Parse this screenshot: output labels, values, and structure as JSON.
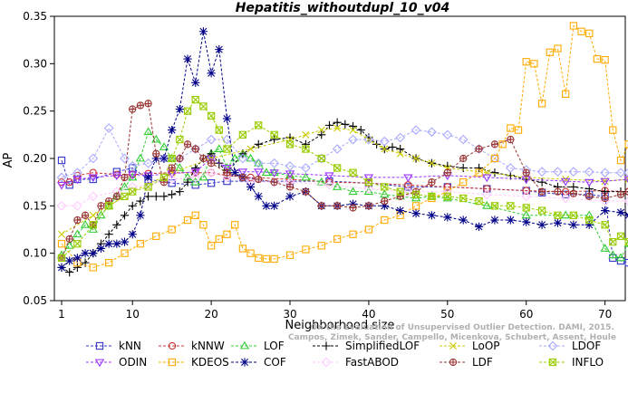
{
  "chart_data": {
    "type": "line",
    "title": "Hepatitis_withoutdupl_10_v04",
    "xlabel": "Neighborhood size",
    "ylabel": "AP",
    "xlim": [
      0,
      74
    ],
    "ylim": [
      0.05,
      0.35
    ],
    "xticks": [
      1,
      10,
      20,
      30,
      40,
      50,
      60,
      70
    ],
    "yticks": [
      0.05,
      0.1,
      0.15,
      0.2,
      0.25,
      0.3,
      0.35
    ],
    "ytick_labels": [
      "0.05",
      "0.10",
      "0.15",
      "0.20",
      "0.25",
      "0.30",
      "0.35"
    ],
    "grid": false,
    "legend_position": "bottom",
    "watermark": "Campos, Zimek, Sander, Campello, Micenkova, Schubert, Assent, Houle",
    "watermark_ref": "On the Evaluation of Unsupervised Outlier Detection. DAMI, 2015.",
    "series": [
      {
        "name": "kNN",
        "color": "#3333cc",
        "marker": "square",
        "x": [
          1,
          2,
          3,
          5,
          8,
          10,
          12,
          15,
          18,
          20,
          22,
          25,
          30,
          35,
          40,
          45,
          50,
          55,
          60,
          62,
          65,
          68,
          70,
          71,
          72,
          73
        ],
        "y": [
          0.198,
          0.172,
          0.178,
          0.178,
          0.186,
          0.19,
          0.178,
          0.174,
          0.172,
          0.174,
          0.176,
          0.176,
          0.176,
          0.176,
          0.174,
          0.17,
          0.17,
          0.168,
          0.166,
          0.164,
          0.162,
          0.162,
          0.16,
          0.095,
          0.092,
          0.09
        ]
      },
      {
        "name": "kNNW",
        "color": "#cc3333",
        "marker": "circle",
        "x": [
          1,
          2,
          3,
          5,
          8,
          10,
          12,
          15,
          18,
          20,
          22,
          25,
          30,
          35,
          40,
          45,
          50,
          55,
          60,
          65,
          70,
          73
        ],
        "y": [
          0.175,
          0.175,
          0.182,
          0.185,
          0.183,
          0.183,
          0.184,
          0.185,
          0.185,
          0.185,
          0.182,
          0.18,
          0.178,
          0.175,
          0.174,
          0.172,
          0.17,
          0.168,
          0.166,
          0.165,
          0.166,
          0.165
        ]
      },
      {
        "name": "LOF",
        "color": "#33cc33",
        "marker": "triangle",
        "x": [
          1,
          2,
          3,
          4,
          5,
          6,
          7,
          8,
          9,
          10,
          11,
          12,
          13,
          14,
          15,
          16,
          17,
          18,
          19,
          20,
          21,
          22,
          23,
          24,
          25,
          26,
          27,
          28,
          30,
          32,
          34,
          36,
          38,
          40,
          42,
          44,
          46,
          48,
          50,
          55,
          60,
          65,
          68,
          70,
          71,
          72,
          73
        ],
        "y": [
          0.098,
          0.108,
          0.12,
          0.13,
          0.125,
          0.14,
          0.15,
          0.16,
          0.17,
          0.18,
          0.2,
          0.228,
          0.22,
          0.212,
          0.2,
          0.19,
          0.18,
          0.175,
          0.18,
          0.205,
          0.21,
          0.19,
          0.2,
          0.205,
          0.2,
          0.195,
          0.185,
          0.185,
          0.182,
          0.18,
          0.175,
          0.17,
          0.165,
          0.165,
          0.162,
          0.16,
          0.158,
          0.16,
          0.158,
          0.15,
          0.14,
          0.14,
          0.14,
          0.105,
          0.098,
          0.095,
          0.11
        ]
      },
      {
        "name": "SimplifiedLOF",
        "color": "#000000",
        "marker": "plus",
        "x": [
          1,
          2,
          3,
          4,
          5,
          6,
          7,
          8,
          9,
          10,
          11,
          12,
          13,
          14,
          15,
          16,
          17,
          18,
          19,
          20,
          21,
          22,
          24,
          26,
          28,
          30,
          32,
          34,
          35,
          36,
          37,
          38,
          39,
          40,
          41,
          42,
          43,
          44,
          46,
          48,
          50,
          52,
          54,
          56,
          58,
          60,
          62,
          64,
          66,
          68,
          70,
          72,
          73
        ],
        "y": [
          0.085,
          0.08,
          0.085,
          0.09,
          0.1,
          0.11,
          0.12,
          0.13,
          0.14,
          0.15,
          0.155,
          0.16,
          0.16,
          0.16,
          0.162,
          0.165,
          0.175,
          0.19,
          0.2,
          0.205,
          0.195,
          0.185,
          0.205,
          0.215,
          0.22,
          0.222,
          0.215,
          0.225,
          0.235,
          0.238,
          0.236,
          0.234,
          0.23,
          0.222,
          0.215,
          0.21,
          0.212,
          0.21,
          0.2,
          0.195,
          0.192,
          0.19,
          0.19,
          0.185,
          0.182,
          0.178,
          0.175,
          0.17,
          0.17,
          0.168,
          0.165,
          0.165,
          0.165
        ]
      },
      {
        "name": "LoOP",
        "color": "#cccc00",
        "marker": "x",
        "x": [
          1,
          5,
          10,
          15,
          20,
          25,
          30,
          32,
          34,
          36,
          38,
          40,
          42,
          44,
          46,
          48,
          50,
          55,
          60,
          65,
          70,
          73
        ],
        "y": [
          0.12,
          0.14,
          0.165,
          0.185,
          0.2,
          0.21,
          0.22,
          0.225,
          0.23,
          0.232,
          0.23,
          0.22,
          0.21,
          0.205,
          0.2,
          0.195,
          0.19,
          0.185,
          0.18,
          0.178,
          0.176,
          0.178
        ]
      },
      {
        "name": "LDOF",
        "color": "#aaaaff",
        "marker": "diamond",
        "x": [
          1,
          3,
          5,
          7,
          9,
          10,
          12,
          14,
          16,
          18,
          20,
          22,
          24,
          26,
          28,
          30,
          32,
          34,
          36,
          38,
          40,
          42,
          44,
          46,
          48,
          50,
          52,
          54,
          56,
          58,
          60,
          62,
          64,
          66,
          68,
          70,
          72,
          73
        ],
        "y": [
          0.18,
          0.185,
          0.2,
          0.232,
          0.2,
          0.192,
          0.195,
          0.2,
          0.2,
          0.21,
          0.22,
          0.22,
          0.2,
          0.195,
          0.195,
          0.192,
          0.19,
          0.2,
          0.21,
          0.22,
          0.22,
          0.218,
          0.222,
          0.23,
          0.228,
          0.225,
          0.22,
          0.21,
          0.2,
          0.19,
          0.188,
          0.186,
          0.186,
          0.186,
          0.186,
          0.185,
          0.185,
          0.185
        ]
      },
      {
        "name": "ODIN",
        "color": "#9933ff",
        "marker": "triangle-down",
        "x": [
          1,
          3,
          5,
          8,
          10,
          12,
          15,
          18,
          20,
          22,
          24,
          26,
          28,
          30,
          35,
          40,
          45,
          50,
          55,
          60,
          65,
          68,
          70,
          73
        ],
        "y": [
          0.172,
          0.178,
          0.18,
          0.182,
          0.183,
          0.182,
          0.184,
          0.186,
          0.2,
          0.19,
          0.186,
          0.186,
          0.185,
          0.184,
          0.182,
          0.18,
          0.18,
          0.182,
          0.18,
          0.178,
          0.176,
          0.175,
          0.176,
          0.178
        ]
      },
      {
        "name": "KDEOS",
        "color": "#ffaa00",
        "marker": "square",
        "x": [
          1,
          3,
          5,
          7,
          9,
          11,
          13,
          15,
          17,
          18,
          19,
          20,
          21,
          22,
          23,
          24,
          25,
          26,
          27,
          28,
          30,
          32,
          34,
          36,
          38,
          40,
          42,
          44,
          46,
          48,
          50,
          52,
          54,
          56,
          57,
          58,
          59,
          60,
          61,
          62,
          63,
          64,
          65,
          66,
          67,
          68,
          69,
          70,
          71,
          72,
          73
        ],
        "y": [
          0.11,
          0.09,
          0.085,
          0.09,
          0.1,
          0.11,
          0.118,
          0.125,
          0.135,
          0.14,
          0.13,
          0.108,
          0.115,
          0.12,
          0.13,
          0.105,
          0.1,
          0.095,
          0.094,
          0.094,
          0.098,
          0.104,
          0.108,
          0.115,
          0.12,
          0.125,
          0.135,
          0.14,
          0.15,
          0.158,
          0.165,
          0.175,
          0.185,
          0.2,
          0.215,
          0.232,
          0.23,
          0.302,
          0.3,
          0.258,
          0.312,
          0.316,
          0.268,
          0.34,
          0.334,
          0.332,
          0.305,
          0.304,
          0.23,
          0.198,
          0.215
        ]
      },
      {
        "name": "COF",
        "color": "#000088",
        "marker": "star",
        "x": [
          1,
          2,
          3,
          4,
          5,
          6,
          7,
          8,
          9,
          10,
          11,
          12,
          13,
          14,
          15,
          16,
          17,
          18,
          19,
          20,
          21,
          22,
          23,
          24,
          25,
          26,
          27,
          28,
          30,
          32,
          34,
          36,
          38,
          40,
          42,
          44,
          46,
          48,
          50,
          52,
          54,
          56,
          58,
          60,
          62,
          64,
          66,
          68,
          70,
          72,
          73
        ],
        "y": [
          0.085,
          0.092,
          0.095,
          0.1,
          0.1,
          0.105,
          0.11,
          0.11,
          0.112,
          0.12,
          0.14,
          0.18,
          0.2,
          0.2,
          0.23,
          0.252,
          0.305,
          0.28,
          0.334,
          0.29,
          0.315,
          0.242,
          0.185,
          0.18,
          0.17,
          0.16,
          0.15,
          0.15,
          0.16,
          0.165,
          0.15,
          0.15,
          0.152,
          0.15,
          0.15,
          0.145,
          0.142,
          0.14,
          0.138,
          0.135,
          0.128,
          0.135,
          0.135,
          0.133,
          0.13,
          0.132,
          0.13,
          0.13,
          0.145,
          0.143,
          0.14
        ]
      },
      {
        "name": "FastABOD",
        "color": "#ffccff",
        "marker": "diamond",
        "x": [
          1,
          3,
          5,
          8,
          10,
          12,
          15,
          18,
          20,
          22,
          25,
          28,
          30,
          35,
          40,
          45,
          50,
          55,
          60,
          65,
          70,
          73
        ],
        "y": [
          0.15,
          0.15,
          0.16,
          0.165,
          0.17,
          0.172,
          0.178,
          0.18,
          0.185,
          0.18,
          0.176,
          0.175,
          0.175,
          0.172,
          0.168,
          0.165,
          0.165,
          0.162,
          0.16,
          0.158,
          0.155,
          0.155
        ]
      },
      {
        "name": "LDF",
        "color": "#993333",
        "marker": "circle-plus",
        "x": [
          1,
          2,
          3,
          4,
          5,
          6,
          7,
          8,
          9,
          10,
          11,
          12,
          13,
          14,
          15,
          16,
          17,
          18,
          19,
          20,
          22,
          24,
          26,
          28,
          30,
          32,
          34,
          36,
          38,
          40,
          42,
          44,
          46,
          48,
          50,
          52,
          54,
          56,
          58,
          60,
          62,
          64,
          66,
          68,
          70,
          72,
          73
        ],
        "y": [
          0.095,
          0.115,
          0.135,
          0.14,
          0.13,
          0.15,
          0.155,
          0.16,
          0.18,
          0.252,
          0.256,
          0.258,
          0.205,
          0.175,
          0.19,
          0.2,
          0.215,
          0.21,
          0.2,
          0.195,
          0.185,
          0.18,
          0.178,
          0.175,
          0.17,
          0.165,
          0.15,
          0.15,
          0.148,
          0.15,
          0.155,
          0.16,
          0.165,
          0.175,
          0.185,
          0.2,
          0.21,
          0.215,
          0.22,
          0.185,
          0.165,
          0.165,
          0.163,
          0.16,
          0.158,
          0.162,
          0.165
        ]
      },
      {
        "name": "INFLO",
        "color": "#99cc00",
        "marker": "hourglass",
        "x": [
          1,
          3,
          5,
          7,
          9,
          10,
          12,
          14,
          15,
          16,
          17,
          18,
          19,
          20,
          21,
          22,
          24,
          26,
          28,
          30,
          32,
          34,
          36,
          38,
          40,
          42,
          44,
          46,
          48,
          50,
          52,
          54,
          56,
          58,
          60,
          62,
          64,
          66,
          68,
          70,
          71,
          72,
          73
        ],
        "y": [
          0.095,
          0.11,
          0.13,
          0.15,
          0.16,
          0.165,
          0.17,
          0.18,
          0.2,
          0.22,
          0.25,
          0.262,
          0.255,
          0.245,
          0.23,
          0.21,
          0.225,
          0.235,
          0.225,
          0.215,
          0.21,
          0.2,
          0.19,
          0.185,
          0.175,
          0.17,
          0.165,
          0.162,
          0.16,
          0.16,
          0.158,
          0.155,
          0.15,
          0.15,
          0.148,
          0.145,
          0.14,
          0.14,
          0.135,
          0.13,
          0.112,
          0.118,
          0.112
        ]
      }
    ]
  }
}
